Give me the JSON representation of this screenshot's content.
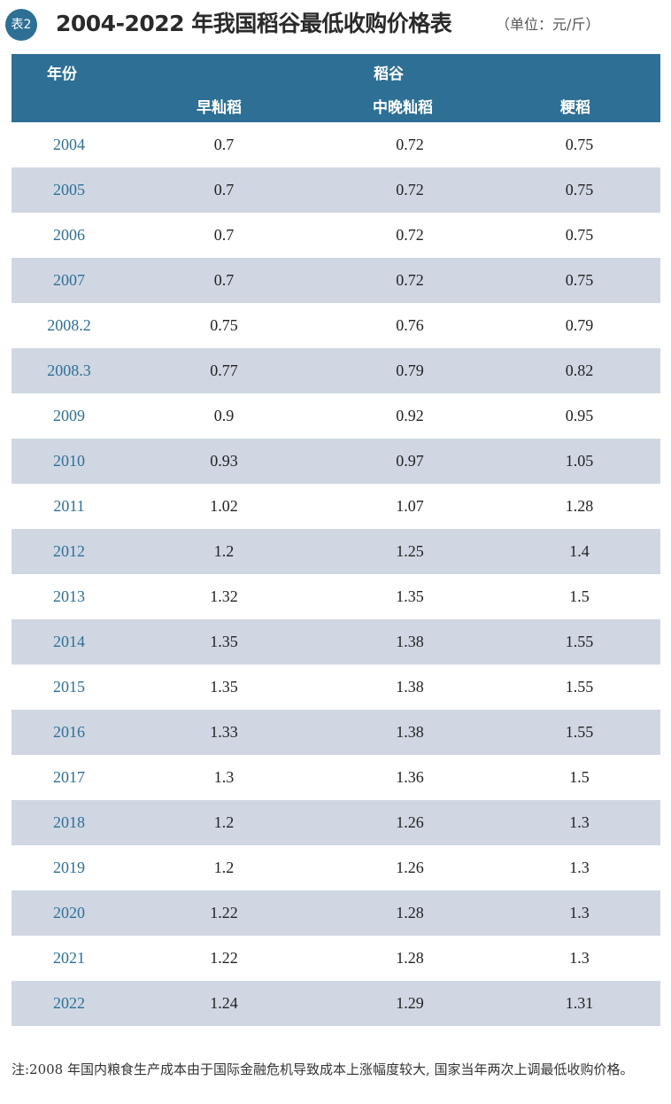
{
  "header": {
    "badge": "表2",
    "title": "2004-2022 年我国稻谷最低收购价格表",
    "unit": "（单位：元/斤）"
  },
  "table": {
    "col_year": "年份",
    "col_group": "稻谷",
    "sub_cols": [
      "早籼稻",
      "中晚籼稻",
      "粳稻"
    ],
    "rows": [
      {
        "year": "2004",
        "v": [
          "0.7",
          "0.72",
          "0.75"
        ]
      },
      {
        "year": "2005",
        "v": [
          "0.7",
          "0.72",
          "0.75"
        ]
      },
      {
        "year": "2006",
        "v": [
          "0.7",
          "0.72",
          "0.75"
        ]
      },
      {
        "year": "2007",
        "v": [
          "0.7",
          "0.72",
          "0.75"
        ]
      },
      {
        "year": "2008.2",
        "v": [
          "0.75",
          "0.76",
          "0.79"
        ]
      },
      {
        "year": "2008.3",
        "v": [
          "0.77",
          "0.79",
          "0.82"
        ]
      },
      {
        "year": "2009",
        "v": [
          "0.9",
          "0.92",
          "0.95"
        ]
      },
      {
        "year": "2010",
        "v": [
          "0.93",
          "0.97",
          "1.05"
        ]
      },
      {
        "year": "2011",
        "v": [
          "1.02",
          "1.07",
          "1.28"
        ]
      },
      {
        "year": "2012",
        "v": [
          "1.2",
          "1.25",
          "1.4"
        ]
      },
      {
        "year": "2013",
        "v": [
          "1.32",
          "1.35",
          "1.5"
        ]
      },
      {
        "year": "2014",
        "v": [
          "1.35",
          "1.38",
          "1.55"
        ]
      },
      {
        "year": "2015",
        "v": [
          "1.35",
          "1.38",
          "1.55"
        ]
      },
      {
        "year": "2016",
        "v": [
          "1.33",
          "1.38",
          "1.55"
        ]
      },
      {
        "year": "2017",
        "v": [
          "1.3",
          "1.36",
          "1.5"
        ]
      },
      {
        "year": "2018",
        "v": [
          "1.2",
          "1.26",
          "1.3"
        ]
      },
      {
        "year": "2019",
        "v": [
          "1.2",
          "1.26",
          "1.3"
        ]
      },
      {
        "year": "2020",
        "v": [
          "1.22",
          "1.28",
          "1.3"
        ]
      },
      {
        "year": "2021",
        "v": [
          "1.22",
          "1.28",
          "1.3"
        ]
      },
      {
        "year": "2022",
        "v": [
          "1.24",
          "1.29",
          "1.31"
        ]
      }
    ]
  },
  "note": "注:2008 年国内粮食生产成本由于国际金融危机导致成本上涨幅度较大, 国家当年两次上调最低收购价格。"
}
